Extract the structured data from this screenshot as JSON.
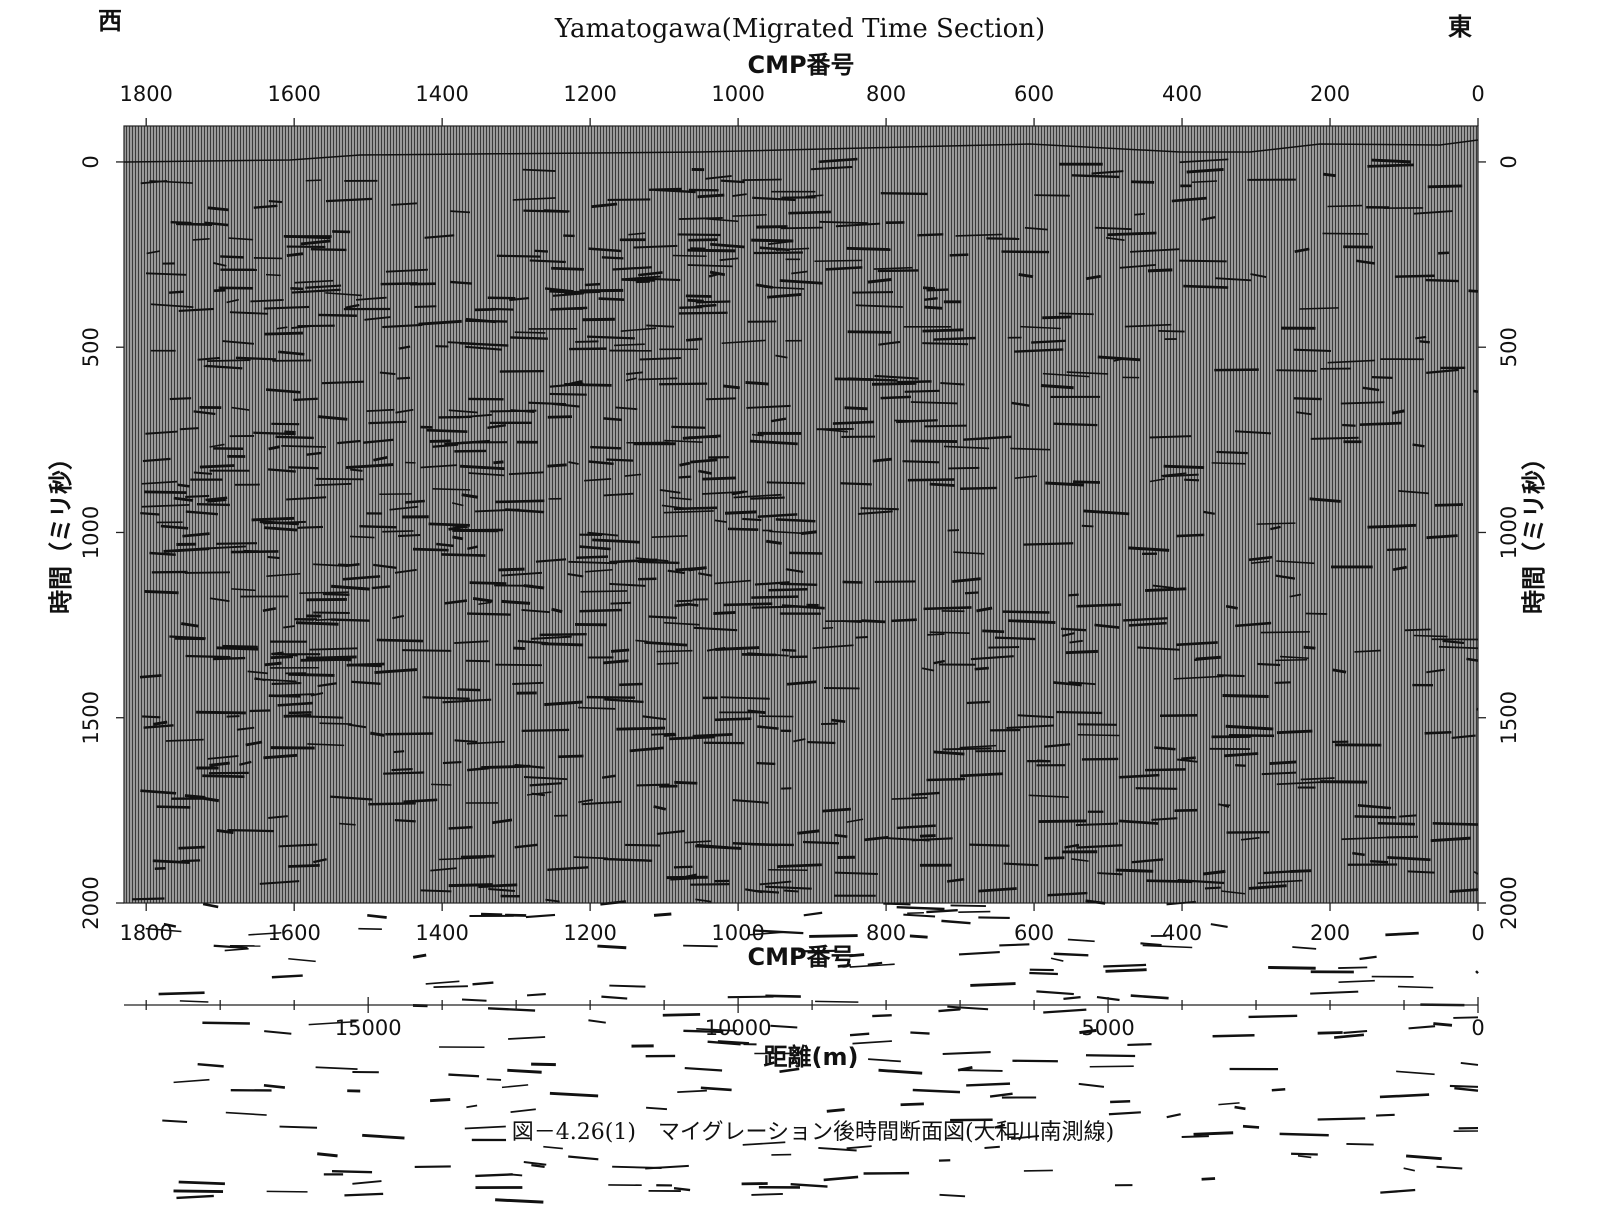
{
  "chart_data": {
    "type": "seismic",
    "title": "Yamatogawa(Migrated Time Section)",
    "west_label": "西",
    "east_label": "東",
    "x_label": "CMP番号",
    "y_label": "時間（ミリ秒）",
    "xlim": [
      1830,
      0
    ],
    "xticks": [
      1800,
      1600,
      1400,
      1200,
      1000,
      800,
      600,
      400,
      200,
      0
    ],
    "ylim": [
      -97,
      2000
    ],
    "yticks": [
      0,
      500,
      1000,
      1500,
      2000
    ],
    "x2_label": "距離(m)",
    "x2lim": [
      18300,
      0
    ],
    "x2ticks": [
      15000,
      10000,
      5000,
      0
    ],
    "x2minor_ticks": [
      18000,
      17000,
      16000,
      14000,
      13000,
      12000,
      11000,
      9000,
      8000,
      7000,
      6000,
      4000,
      3000,
      2000,
      1000
    ]
  },
  "caption": "図－4.26(1)　マイグレーション後時間断面図(大和川南測線)"
}
